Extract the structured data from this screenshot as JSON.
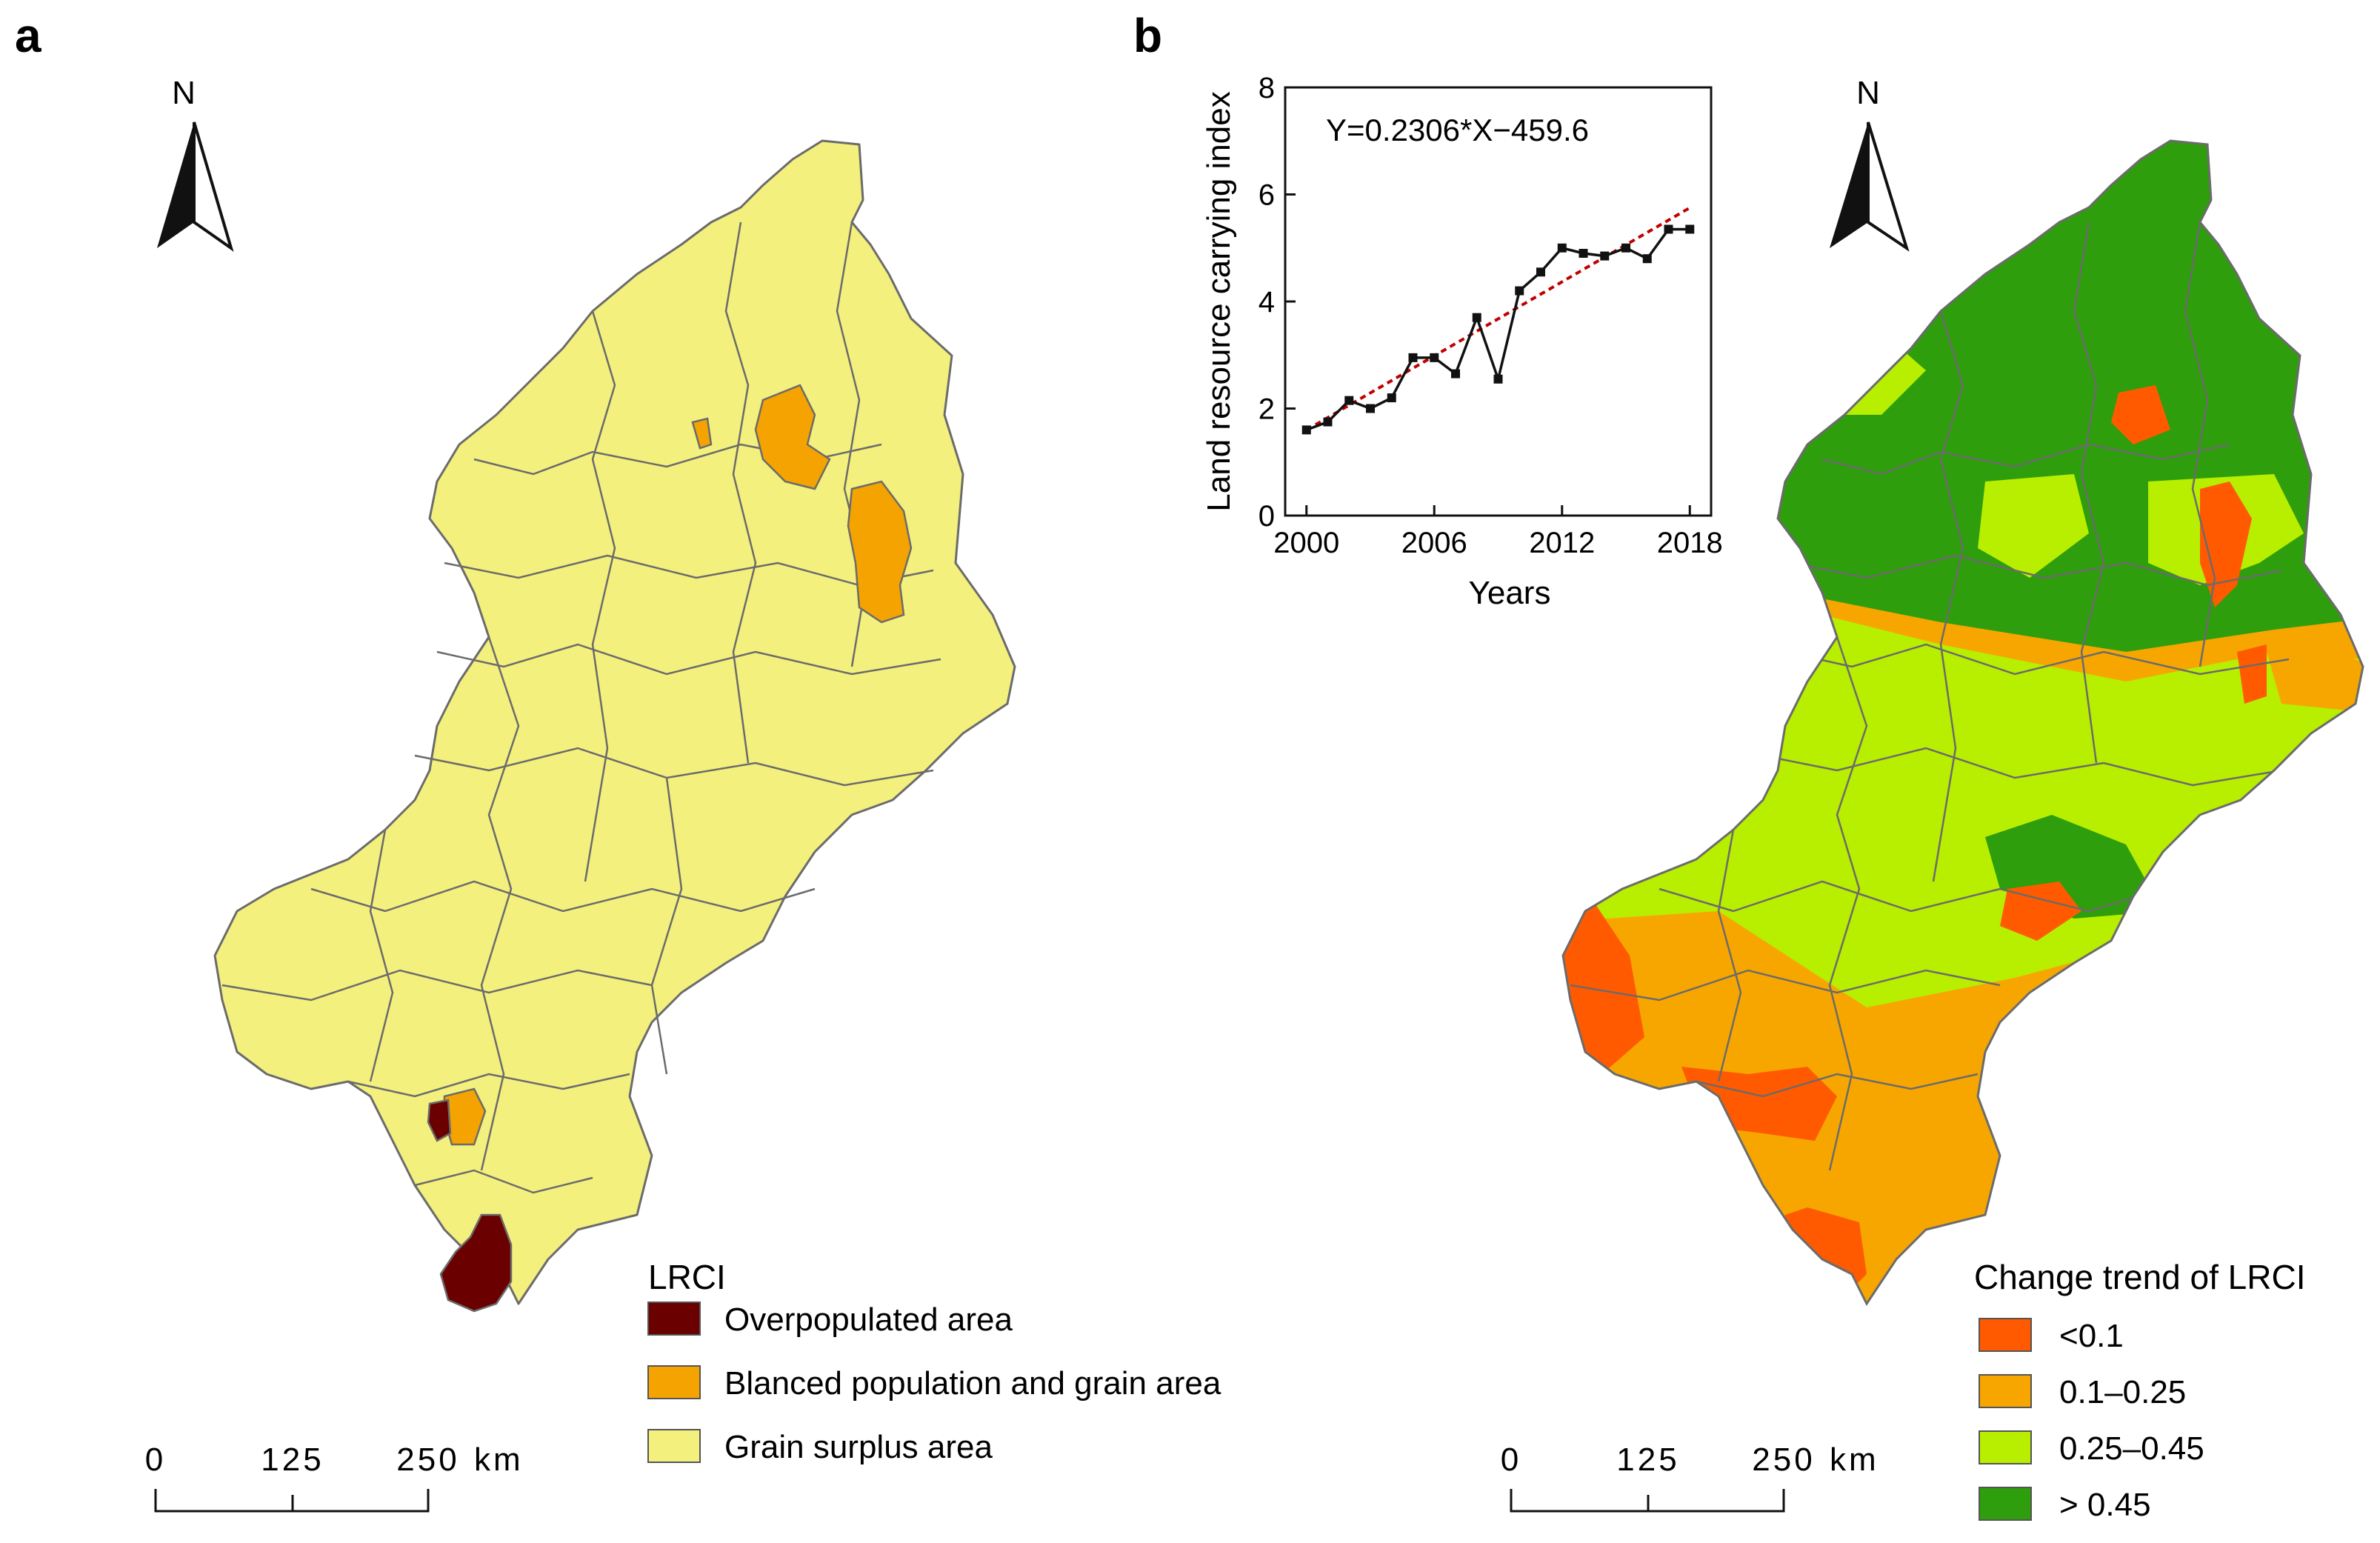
{
  "panel_a": {
    "label": "a",
    "north": "N",
    "legend": {
      "title": "LRCI",
      "items": [
        {
          "label": "Overpopulated area",
          "color": "#6b0000"
        },
        {
          "label": "Blanced population and grain area",
          "color": "#f5a300"
        },
        {
          "label": "Grain surplus area",
          "color": "#f3f07e"
        }
      ]
    },
    "scale": {
      "t0": "0",
      "t1": "125",
      "t2": "250",
      "unit": "km"
    }
  },
  "panel_b": {
    "label": "b",
    "north": "N",
    "legend": {
      "title": "Change trend of LRCI",
      "items": [
        {
          "label": "<0.1",
          "color": "#ff5a00"
        },
        {
          "label": "0.1–0.25",
          "color": "#f7a600"
        },
        {
          "label": "0.25–0.45",
          "color": "#b8ee00"
        },
        {
          "label": "> 0.45",
          "color": "#2e9e0c"
        }
      ]
    },
    "scale": {
      "t0": "0",
      "t1": "125",
      "t2": "250",
      "unit": "km"
    }
  },
  "chart_data": {
    "type": "line",
    "equation": "Y=0.2306*X−459.6",
    "xlabel": "Years",
    "ylabel": "Land resource carrying index",
    "xlim": [
      1999,
      2019
    ],
    "ylim": [
      0,
      8
    ],
    "x_ticks": [
      2000,
      2006,
      2012,
      2018
    ],
    "y_ticks": [
      0,
      2,
      4,
      6,
      8
    ],
    "x": [
      2000,
      2001,
      2002,
      2003,
      2004,
      2005,
      2006,
      2007,
      2008,
      2009,
      2010,
      2011,
      2012,
      2013,
      2014,
      2015,
      2016,
      2017,
      2018
    ],
    "y": [
      1.6,
      1.75,
      2.15,
      2.0,
      2.2,
      2.95,
      2.95,
      2.65,
      3.7,
      2.55,
      4.2,
      4.55,
      5.0,
      4.9,
      4.85,
      5.0,
      4.8,
      5.35,
      5.35
    ],
    "trend": {
      "slope": 0.2306,
      "intercept": -459.6
    }
  }
}
